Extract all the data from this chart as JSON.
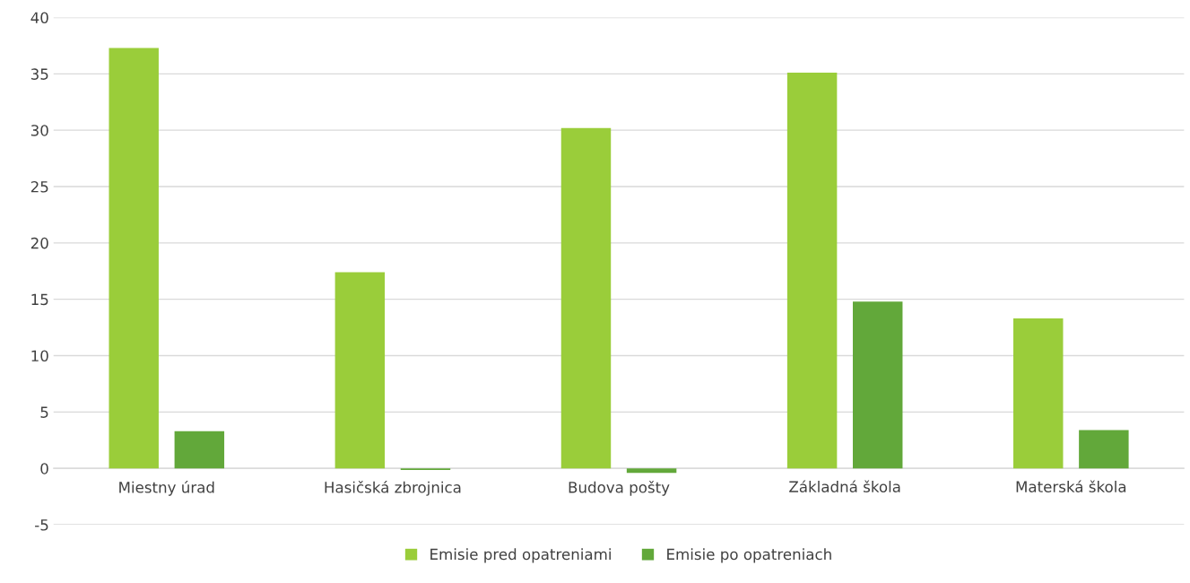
{
  "chart_data": {
    "type": "bar",
    "categories": [
      "Miestny úrad",
      "Hasičská zbrojnica",
      "Budova pošty",
      "Základná škola",
      "Materská škola"
    ],
    "series": [
      {
        "name": "Emisie pred opatreniami",
        "color": "#9acd3a",
        "values": [
          37.3,
          17.4,
          30.2,
          35.1,
          13.3
        ]
      },
      {
        "name": "Emisie po opatreniach",
        "color": "#62a83a",
        "values": [
          3.3,
          -0.15,
          -0.4,
          14.8,
          3.4
        ]
      }
    ],
    "ylim": [
      -5,
      40
    ],
    "yticks": [
      -5,
      0,
      5,
      10,
      15,
      20,
      25,
      30,
      35,
      40
    ],
    "grid": "y",
    "legend": "bottom"
  }
}
